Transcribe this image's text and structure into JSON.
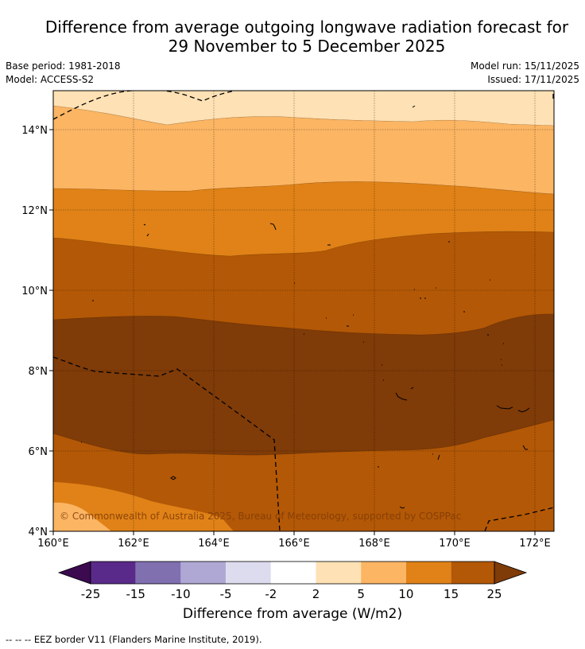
{
  "header": {
    "title_line1": "Difference from average outgoing longwave radiation forecast for",
    "title_line2": "29 November to 5 December 2025",
    "base_period": "Base period: 1981-2018",
    "model": "Model: ACCESS-S2",
    "model_run": "Model run: 15/11/2025",
    "issued": "Issued: 17/11/2025"
  },
  "map": {
    "lon_ticks": [
      "160°E",
      "162°E",
      "164°E",
      "166°E",
      "168°E",
      "170°E",
      "172°E"
    ],
    "lat_ticks": [
      "4°N",
      "6°N",
      "8°N",
      "10°N",
      "12°N",
      "14°N"
    ],
    "copyright": "© Commonwealth of Australia 2025, Bureau of Meteorology, supported by COSPPac"
  },
  "colorbar": {
    "labels": [
      "-25",
      "-15",
      "-10",
      "-5",
      "-2",
      "2",
      "5",
      "10",
      "15",
      "25"
    ],
    "colors": [
      "#3b0a4f",
      "#5a2a8a",
      "#8070b0",
      "#b0a8d4",
      "#dcdcee",
      "#ffffff",
      "#fee1b4",
      "#fbb563",
      "#e08217",
      "#b35806",
      "#7f3b08"
    ],
    "title": "Difference from average (W/m2)"
  },
  "legend": {
    "text": "-- -- -- EEZ border V11 (Flanders Marine Institute, 2019)."
  }
}
